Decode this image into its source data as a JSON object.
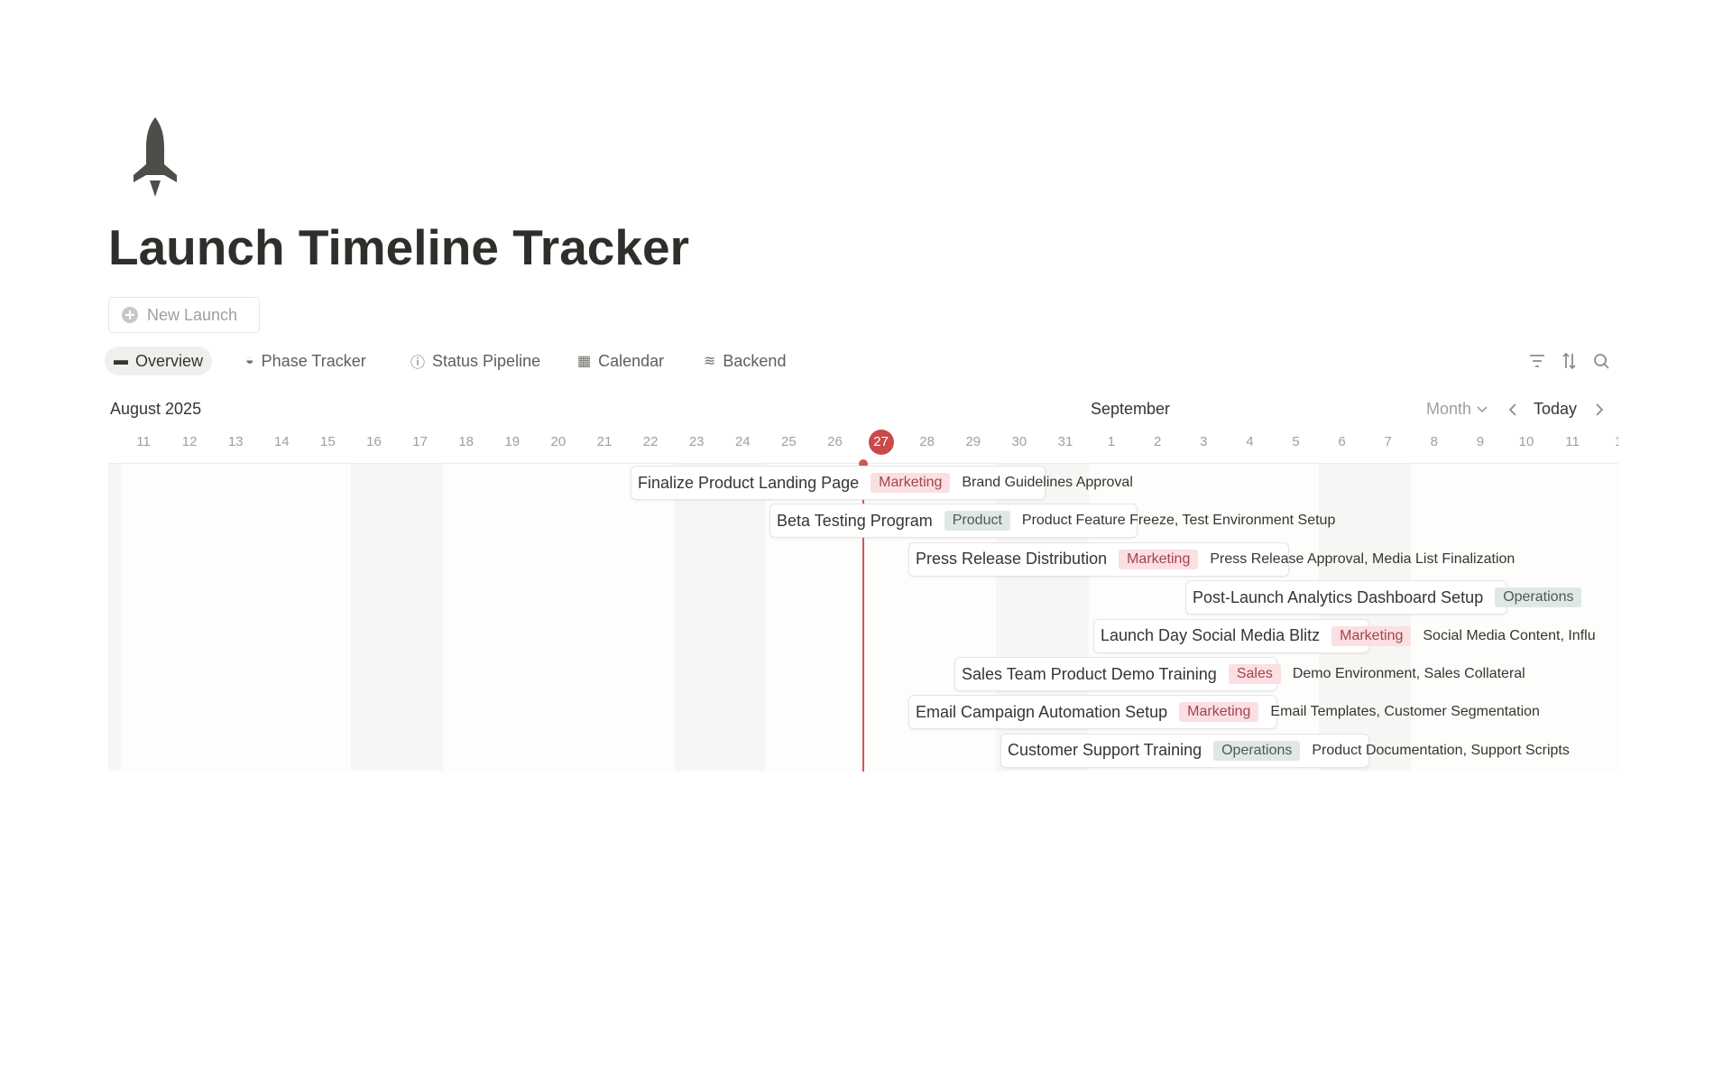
{
  "header": {
    "title": "Launch Timeline Tracker",
    "new_button": "New Launch"
  },
  "tabs": [
    "Overview",
    "Phase Tracker",
    "Status Pipeline",
    "Calendar",
    "Backend"
  ],
  "timeline": {
    "month_labels": [
      "August 2025",
      "September"
    ],
    "view": "Month",
    "today_button": "Today",
    "days": [
      11,
      12,
      13,
      14,
      15,
      16,
      17,
      18,
      19,
      20,
      21,
      22,
      23,
      24,
      25,
      26,
      27,
      28,
      29,
      30,
      31,
      1,
      2,
      3,
      4,
      5,
      6,
      7,
      8,
      9,
      10,
      11,
      1
    ],
    "items": [
      {
        "name": "Finalize Product Landing Page",
        "tag": "Marketing",
        "dependencies": "Brand Guidelines Approval"
      },
      {
        "name": "Beta Testing Program",
        "tag": "Product",
        "dependencies": "Product Feature Freeze, Test Environment Setup"
      },
      {
        "name": "Press Release Distribution",
        "tag": "Marketing",
        "dependencies": "Press Release Approval, Media List Finalization"
      },
      {
        "name": "Post-Launch Analytics Dashboard Setup",
        "tag": "Operations"
      },
      {
        "name": "Launch Day Social Media Blitz",
        "tag": "Marketing",
        "dependencies": "Social Media Content, Influ"
      },
      {
        "name": "Sales Team Product Demo Training",
        "tag": "Sales",
        "dependencies": "Demo Environment, Sales Collateral"
      },
      {
        "name": "Email Campaign Automation Setup",
        "tag": "Marketing",
        "dependencies": "Email Templates, Customer Segmentation"
      },
      {
        "name": "Customer Support Training",
        "tag": "Operations",
        "dependencies": "Product Documentation, Support Scripts"
      }
    ]
  }
}
